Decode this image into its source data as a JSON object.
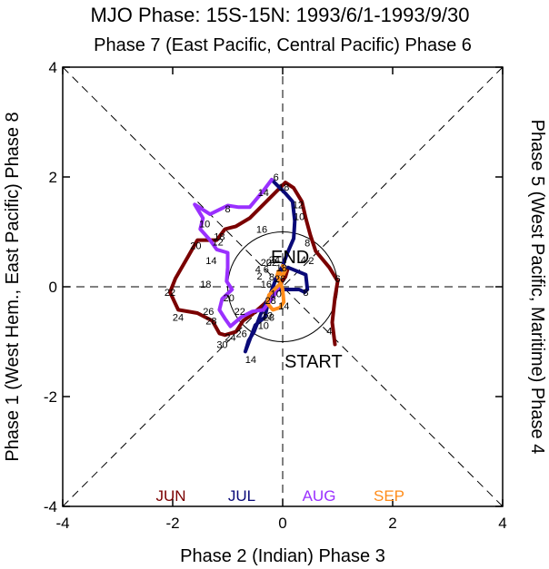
{
  "chart_data": {
    "type": "line",
    "title": "MJO Phase: 15S-15N: 1993/6/1-1993/9/30",
    "top_label": "Phase 7 (East Pacific, Central Pacific) Phase 6",
    "bottom_label": "Phase 2 (Indian) Phase 3",
    "left_label": "Phase 1 (West Hem., East Pacific) Phase 8",
    "right_label": "Phase 5 (West Pacific, Maritime) Phase 4",
    "xlim": [
      -4,
      4
    ],
    "ylim": [
      -4,
      4
    ],
    "x_ticks": [
      "-4",
      "-2",
      "0",
      "2",
      "4"
    ],
    "y_ticks": [
      "-4",
      "-2",
      "0",
      "2",
      "4"
    ],
    "start_label": "START",
    "end_label": "END",
    "legend": [
      {
        "label": "JUN",
        "color": "#7a0000"
      },
      {
        "label": "JUL",
        "color": "#0a0a78"
      },
      {
        "label": "AUG",
        "color": "#9a30ff"
      },
      {
        "label": "SEP",
        "color": "#ff8c1a"
      }
    ],
    "series": [
      {
        "name": "JUN",
        "color": "#7a0000",
        "points": [
          [
            0.95,
            -1.05
          ],
          [
            0.9,
            -0.65
          ],
          [
            0.95,
            -0.2
          ],
          [
            1.0,
            0.1
          ],
          [
            0.85,
            0.35
          ],
          [
            0.6,
            0.65
          ],
          [
            0.5,
            0.95
          ],
          [
            0.42,
            1.25
          ],
          [
            0.35,
            1.55
          ],
          [
            0.2,
            1.8
          ],
          [
            0.05,
            1.9
          ],
          [
            -0.35,
            1.5
          ],
          [
            -0.6,
            1.25
          ],
          [
            -0.85,
            1.1
          ],
          [
            -1.05,
            1.05
          ],
          [
            -1.2,
            0.85
          ],
          [
            -1.55,
            0.85
          ],
          [
            -1.72,
            0.55
          ],
          [
            -1.95,
            0.15
          ],
          [
            -2.05,
            -0.1
          ],
          [
            -1.9,
            -0.42
          ],
          [
            -1.55,
            -0.48
          ],
          [
            -1.28,
            -0.62
          ],
          [
            -1.15,
            -0.85
          ],
          [
            -1.05,
            -0.88
          ],
          [
            -0.85,
            -0.82
          ],
          [
            -0.72,
            -0.62
          ],
          [
            -0.55,
            -0.5
          ],
          [
            -0.32,
            -0.3
          ],
          [
            -0.12,
            -0.05
          ],
          [
            0.05,
            0.18
          ],
          [
            0.1,
            0.35
          ]
        ]
      },
      {
        "name": "JUL",
        "color": "#0a0a78",
        "points": [
          [
            0.1,
            0.35
          ],
          [
            0.42,
            0.22
          ],
          [
            0.45,
            -0.05
          ],
          [
            0.4,
            -0.1
          ],
          [
            0.3,
            -0.05
          ],
          [
            0.12,
            -0.05
          ],
          [
            -0.1,
            -0.05
          ],
          [
            -0.25,
            -0.2
          ],
          [
            -0.32,
            -0.55
          ],
          [
            -0.5,
            -0.7
          ],
          [
            -0.68,
            -1.18
          ],
          [
            -0.62,
            -0.98
          ],
          [
            -0.52,
            -0.82
          ],
          [
            -0.4,
            -0.5
          ],
          [
            -0.22,
            -0.12
          ],
          [
            -0.12,
            0.15
          ],
          [
            0.0,
            0.38
          ],
          [
            0.08,
            0.6
          ],
          [
            0.2,
            0.88
          ],
          [
            0.22,
            1.2
          ],
          [
            0.18,
            1.55
          ],
          [
            0.05,
            1.7
          ],
          [
            -0.1,
            1.85
          ],
          [
            -0.2,
            1.95
          ]
        ]
      },
      {
        "name": "AUG",
        "color": "#9a30ff",
        "points": [
          [
            -0.2,
            1.95
          ],
          [
            -0.35,
            1.75
          ],
          [
            -0.6,
            1.45
          ],
          [
            -0.8,
            1.45
          ],
          [
            -1.0,
            1.48
          ],
          [
            -1.32,
            1.32
          ],
          [
            -1.6,
            1.5
          ],
          [
            -1.45,
            1.25
          ],
          [
            -1.5,
            1.05
          ],
          [
            -1.32,
            0.85
          ],
          [
            -1.2,
            0.68
          ],
          [
            -1.0,
            0.62
          ],
          [
            -1.0,
            0.35
          ],
          [
            -1.02,
            0.1
          ],
          [
            -0.92,
            -0.05
          ],
          [
            -1.1,
            -0.22
          ],
          [
            -1.15,
            -0.42
          ],
          [
            -1.05,
            -0.58
          ],
          [
            -0.95,
            -0.72
          ],
          [
            -0.75,
            -0.55
          ],
          [
            -0.55,
            -0.45
          ],
          [
            -0.35,
            -0.42
          ],
          [
            -0.25,
            -0.28
          ],
          [
            -0.2,
            -0.22
          ],
          [
            -0.12,
            -0.1
          ],
          [
            -0.05,
            0.05
          ]
        ]
      },
      {
        "name": "SEP",
        "color": "#ff8c1a",
        "points": [
          [
            -0.05,
            0.05
          ],
          [
            -0.15,
            -0.05
          ],
          [
            -0.25,
            -0.15
          ],
          [
            -0.28,
            -0.3
          ],
          [
            -0.18,
            -0.42
          ],
          [
            -0.05,
            -0.38
          ],
          [
            0.02,
            -0.28
          ],
          [
            0.0,
            -0.05
          ],
          [
            -0.05,
            0.1
          ],
          [
            -0.1,
            0.2
          ],
          [
            -0.08,
            0.28
          ],
          [
            0.0,
            0.2
          ],
          [
            0.05,
            0.3
          ],
          [
            0.0,
            0.38
          ]
        ]
      }
    ],
    "day_labels": [
      {
        "text": "6",
        "x": 1.0,
        "y": 0.15
      },
      {
        "text": "4",
        "x": 0.85,
        "y": -0.8
      },
      {
        "text": "8",
        "x": 0.45,
        "y": 0.8
      },
      {
        "text": "10",
        "x": 0.3,
        "y": 1.28
      },
      {
        "text": "12",
        "x": 0.28,
        "y": 1.5
      },
      {
        "text": "18",
        "x": 0.02,
        "y": 1.82
      },
      {
        "text": "16",
        "x": -0.38,
        "y": 1.05
      },
      {
        "text": "18",
        "x": -1.15,
        "y": 0.92
      },
      {
        "text": "20",
        "x": -1.58,
        "y": 0.75
      },
      {
        "text": "22",
        "x": -2.05,
        "y": -0.1
      },
      {
        "text": "24",
        "x": -1.9,
        "y": -0.55
      },
      {
        "text": "26",
        "x": -1.35,
        "y": -0.45
      },
      {
        "text": "28",
        "x": -1.3,
        "y": -0.62
      },
      {
        "text": "30",
        "x": -1.1,
        "y": -1.05
      },
      {
        "text": "2",
        "x": 0.52,
        "y": 0.48
      },
      {
        "text": "4",
        "x": 0.38,
        "y": 0.5
      },
      {
        "text": "8",
        "x": 0.42,
        "y": -0.1
      },
      {
        "text": "10",
        "x": -0.35,
        "y": -0.7
      },
      {
        "text": "14",
        "x": -0.58,
        "y": -1.32
      },
      {
        "text": "16",
        "x": -0.3,
        "y": 0.05
      },
      {
        "text": "6",
        "x": -0.12,
        "y": 2.0
      },
      {
        "text": "8",
        "x": -1.0,
        "y": 1.42
      },
      {
        "text": "10",
        "x": -1.42,
        "y": 1.15
      },
      {
        "text": "12",
        "x": -1.18,
        "y": 0.82
      },
      {
        "text": "14",
        "x": -1.3,
        "y": 0.48
      },
      {
        "text": "18",
        "x": -1.4,
        "y": 0.05
      },
      {
        "text": "20",
        "x": -0.98,
        "y": -0.2
      },
      {
        "text": "22",
        "x": -0.78,
        "y": -0.45
      },
      {
        "text": "24",
        "x": -0.95,
        "y": -0.92
      },
      {
        "text": "26",
        "x": -0.75,
        "y": -0.85
      },
      {
        "text": "28",
        "x": -0.25,
        "y": -0.55
      },
      {
        "text": "14",
        "x": -0.35,
        "y": 1.72
      },
      {
        "text": "2",
        "x": -0.42,
        "y": 0.2
      },
      {
        "text": "4",
        "x": -0.45,
        "y": 0.32
      },
      {
        "text": "6",
        "x": -0.3,
        "y": 0.32
      },
      {
        "text": "8",
        "x": -0.2,
        "y": 0.18
      },
      {
        "text": "10",
        "x": -0.12,
        "y": -0.12
      },
      {
        "text": "12",
        "x": -0.28,
        "y": -0.52
      },
      {
        "text": "14",
        "x": 0.02,
        "y": -0.35
      },
      {
        "text": "18",
        "x": -0.02,
        "y": 0.35
      },
      {
        "text": "20",
        "x": -0.3,
        "y": 0.45
      },
      {
        "text": "22",
        "x": -0.2,
        "y": 0.45
      },
      {
        "text": "24",
        "x": -0.15,
        "y": 0.5
      },
      {
        "text": "26",
        "x": -0.05,
        "y": 0.15
      },
      {
        "text": "28",
        "x": -0.22,
        "y": -0.25
      }
    ]
  }
}
